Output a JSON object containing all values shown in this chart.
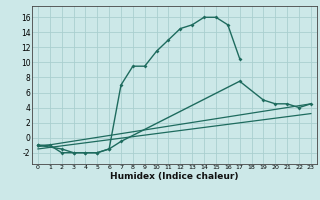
{
  "background_color": "#cce8e8",
  "grid_color": "#aacfcf",
  "line_color": "#1e6b5e",
  "xlabel": "Humidex (Indice chaleur)",
  "xlim": [
    -0.5,
    23.5
  ],
  "ylim": [
    -3.5,
    17.5
  ],
  "xticks": [
    0,
    1,
    2,
    3,
    4,
    5,
    6,
    7,
    8,
    9,
    10,
    11,
    12,
    13,
    14,
    15,
    16,
    17,
    18,
    19,
    20,
    21,
    22,
    23
  ],
  "yticks": [
    -2,
    0,
    2,
    4,
    6,
    8,
    10,
    12,
    14,
    16
  ],
  "curve1_x": [
    0,
    1,
    2,
    3,
    4,
    5,
    6,
    7,
    8,
    9,
    10,
    11,
    12,
    13,
    14,
    15,
    16,
    17
  ],
  "curve1_y": [
    -1,
    -1,
    -2,
    -2,
    -2,
    -2,
    -1.5,
    7,
    9.5,
    9.5,
    11.5,
    13,
    14.5,
    15,
    16,
    16,
    15,
    10.5
  ],
  "curve2_x": [
    0,
    2,
    3,
    4,
    5,
    6,
    7,
    17,
    19,
    20,
    21,
    22,
    23
  ],
  "curve2_y": [
    -1,
    -1.5,
    -2,
    -2,
    -2,
    -1.5,
    -0.5,
    7.5,
    5,
    4.5,
    4.5,
    4,
    4.5
  ],
  "curve3_x": [
    0,
    23
  ],
  "curve3_y": [
    -1.2,
    4.5
  ],
  "curve4_x": [
    0,
    23
  ],
  "curve4_y": [
    -1.5,
    3.2
  ]
}
